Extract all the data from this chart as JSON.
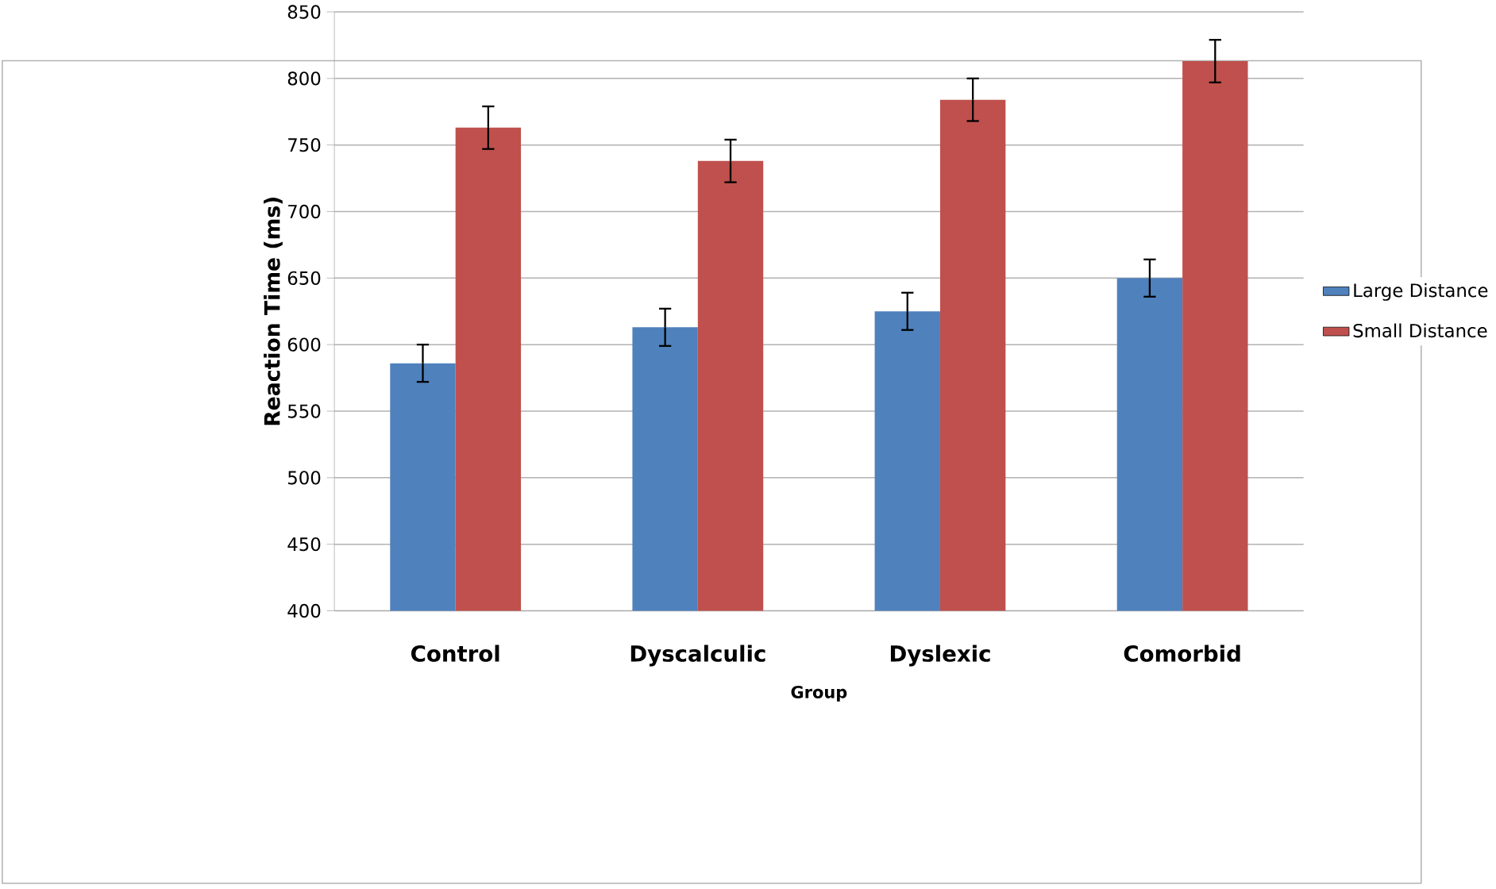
{
  "chart_data": {
    "type": "bar",
    "xlabel": "Group",
    "ylabel": "Reaction Time (ms)",
    "categories": [
      "Control",
      "Dyscalculic",
      "Dyslexic",
      "Comorbid"
    ],
    "series": [
      {
        "name": "Large Distance",
        "color": "#4f81bd",
        "values": [
          586,
          613,
          625,
          650
        ],
        "errors": [
          14,
          14,
          14,
          14
        ]
      },
      {
        "name": "Small Distance",
        "color": "#c0504d",
        "values": [
          763,
          738,
          784,
          813
        ],
        "errors": [
          16,
          16,
          16,
          16
        ]
      }
    ],
    "ylim": [
      400,
      850
    ],
    "yticks": [
      400,
      450,
      500,
      550,
      600,
      650,
      700,
      750,
      800,
      850
    ],
    "grid": "y",
    "legend": "right"
  }
}
